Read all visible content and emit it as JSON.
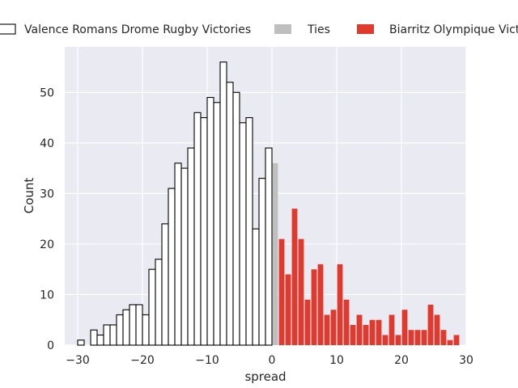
{
  "chart_data": {
    "type": "bar",
    "title": "",
    "xlabel": "spread",
    "ylabel": "Count",
    "xlim": [
      -32,
      30
    ],
    "ylim": [
      0,
      59
    ],
    "xticks": [
      -30,
      -20,
      -10,
      0,
      10,
      20,
      30
    ],
    "yticks": [
      0,
      10,
      20,
      30,
      40,
      50
    ],
    "grid": true,
    "legend_position": "top",
    "colors": {
      "plot_bg": "#eaeaf2",
      "grid": "#ffffff",
      "valence_fill": "#ffffff",
      "valence_edge": "#000000",
      "ties_fill": "#bfbfbf",
      "biarritz_fill": "#e03a2e"
    },
    "series": [
      {
        "name": "Valence Romans Drome Rugby Victories",
        "bins": [
          [
            -30,
            1
          ],
          [
            -29,
            0
          ],
          [
            -28,
            3
          ],
          [
            -27,
            2
          ],
          [
            -26,
            4
          ],
          [
            -25,
            4
          ],
          [
            -24,
            6
          ],
          [
            -23,
            7
          ],
          [
            -22,
            8
          ],
          [
            -21,
            8
          ],
          [
            -20,
            6
          ],
          [
            -19,
            15
          ],
          [
            -18,
            17
          ],
          [
            -17,
            24
          ],
          [
            -16,
            31
          ],
          [
            -15,
            36
          ],
          [
            -14,
            35
          ],
          [
            -13,
            39
          ],
          [
            -12,
            46
          ],
          [
            -11,
            45
          ],
          [
            -10,
            49
          ],
          [
            -9,
            48
          ],
          [
            -8,
            56
          ],
          [
            -7,
            52
          ],
          [
            -6,
            50
          ],
          [
            -5,
            44
          ],
          [
            -4,
            45
          ],
          [
            -3,
            23
          ],
          [
            -2,
            33
          ],
          [
            -1,
            39
          ]
        ]
      },
      {
        "name": "Ties",
        "bins": [
          [
            0,
            36
          ]
        ]
      },
      {
        "name": "Biarritz Olympique Victories",
        "bins": [
          [
            1,
            21
          ],
          [
            2,
            14
          ],
          [
            3,
            27
          ],
          [
            4,
            21
          ],
          [
            5,
            9
          ],
          [
            6,
            15
          ],
          [
            7,
            16
          ],
          [
            8,
            6
          ],
          [
            9,
            7
          ],
          [
            10,
            16
          ],
          [
            11,
            9
          ],
          [
            12,
            4
          ],
          [
            13,
            6
          ],
          [
            14,
            4
          ],
          [
            15,
            5
          ],
          [
            16,
            5
          ],
          [
            17,
            2
          ],
          [
            18,
            6
          ],
          [
            19,
            2
          ],
          [
            20,
            7
          ],
          [
            21,
            3
          ],
          [
            22,
            3
          ],
          [
            23,
            3
          ],
          [
            24,
            8
          ],
          [
            25,
            6
          ],
          [
            26,
            3
          ],
          [
            27,
            1
          ],
          [
            28,
            2
          ]
        ]
      }
    ]
  }
}
